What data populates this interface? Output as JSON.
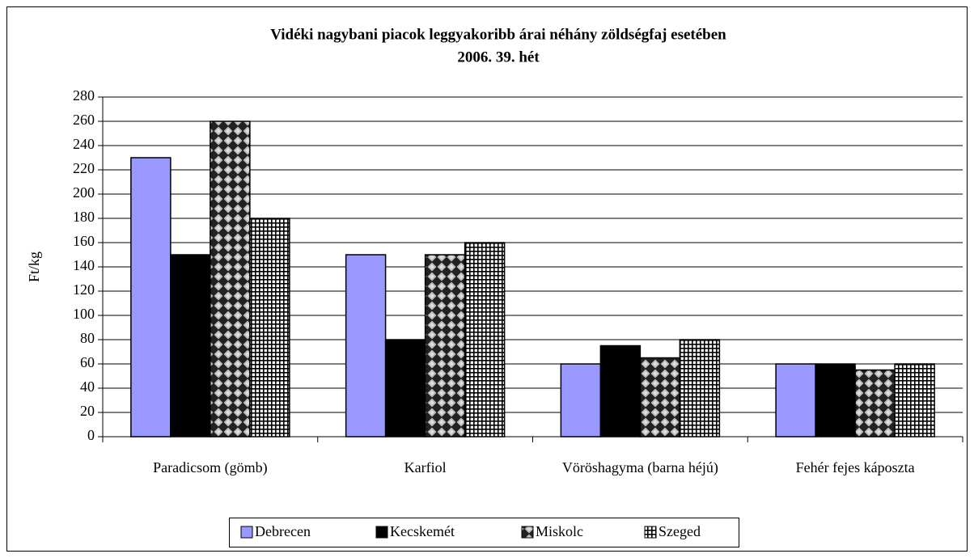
{
  "chart_data": {
    "type": "bar",
    "title": "Vidéki nagybani piacok leggyakoribb árai néhány zöldségfaj esetében",
    "subtitle": "2006. 39. hét",
    "y_label": "Ft/kg",
    "categories": [
      "Paradicsom (gömb)",
      "Karfiol",
      "Vöröshagyma (barna héjú)",
      "Fehér fejes káposzta"
    ],
    "series": [
      {
        "name": "Debrecen",
        "color": "#9999ff",
        "values": [
          230,
          150,
          60,
          60
        ]
      },
      {
        "name": "Kecskemét",
        "color": "#000000",
        "values": [
          150,
          80,
          75,
          60
        ]
      },
      {
        "name": "Miskolc",
        "color": "#808080",
        "pattern": "checker",
        "values": [
          260,
          150,
          65,
          55
        ]
      },
      {
        "name": "Szeged",
        "color": "#ffffff",
        "pattern": "grid",
        "values": [
          180,
          160,
          80,
          60
        ]
      }
    ],
    "ylim": [
      0,
      280
    ],
    "yticks": [
      0,
      20,
      40,
      60,
      80,
      100,
      120,
      140,
      160,
      180,
      200,
      220,
      240,
      260,
      280
    ],
    "grid": true,
    "legend": "bottom"
  }
}
